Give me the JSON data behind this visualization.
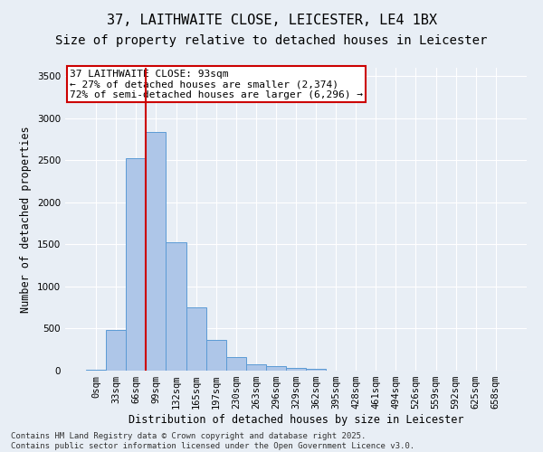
{
  "title_line1": "37, LAITHWAITE CLOSE, LEICESTER, LE4 1BX",
  "title_line2": "Size of property relative to detached houses in Leicester",
  "xlabel": "Distribution of detached houses by size in Leicester",
  "ylabel": "Number of detached properties",
  "bar_labels": [
    "0sqm",
    "33sqm",
    "66sqm",
    "99sqm",
    "132sqm",
    "165sqm",
    "197sqm",
    "230sqm",
    "263sqm",
    "296sqm",
    "329sqm",
    "362sqm",
    "395sqm",
    "428sqm",
    "461sqm",
    "494sqm",
    "526sqm",
    "559sqm",
    "592sqm",
    "625sqm",
    "658sqm"
  ],
  "bar_values": [
    10,
    480,
    2520,
    2840,
    1530,
    750,
    370,
    160,
    75,
    55,
    35,
    20,
    0,
    0,
    0,
    0,
    0,
    0,
    0,
    0,
    0
  ],
  "bar_color": "#aec6e8",
  "bar_edge_color": "#5b9bd5",
  "bar_edge_width": 0.7,
  "vline_x": 2.5,
  "vline_color": "#cc0000",
  "annotation_text": "37 LAITHWAITE CLOSE: 93sqm\n← 27% of detached houses are smaller (2,374)\n72% of semi-detached houses are larger (6,296) →",
  "annotation_box_color": "#cc0000",
  "ylim": [
    0,
    3600
  ],
  "yticks": [
    0,
    500,
    1000,
    1500,
    2000,
    2500,
    3000,
    3500
  ],
  "background_color": "#e8eef5",
  "grid_color": "#ffffff",
  "footer_text": "Contains HM Land Registry data © Crown copyright and database right 2025.\nContains public sector information licensed under the Open Government Licence v3.0.",
  "title_fontsize": 11,
  "subtitle_fontsize": 10,
  "axis_label_fontsize": 8.5,
  "tick_fontsize": 7.5,
  "annotation_fontsize": 8,
  "footer_fontsize": 6.5
}
